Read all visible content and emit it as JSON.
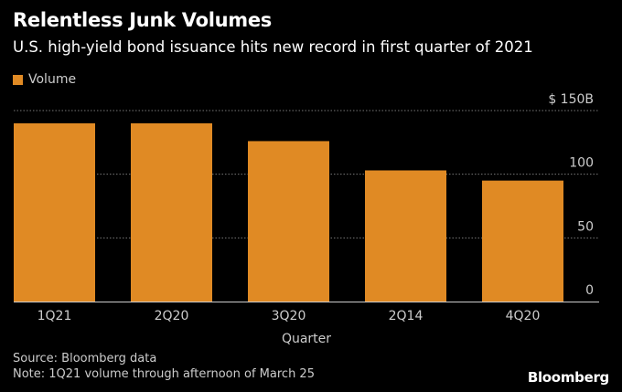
{
  "chart_data": {
    "type": "bar",
    "title": "Relentless Junk Volumes",
    "subtitle": "U.S. high-yield bond issuance hits new record in first quarter of 2021",
    "legend": [
      "Volume"
    ],
    "legend_placement": "top-left",
    "categories": [
      "1Q21",
      "2Q20",
      "3Q20",
      "2Q14",
      "4Q20"
    ],
    "series": [
      {
        "name": "Volume",
        "values": [
          140,
          140,
          126,
          103,
          95
        ]
      }
    ],
    "xlabel": "Quarter",
    "ylabel": "",
    "ylim": [
      0,
      150
    ],
    "yticks": [
      0,
      50,
      100,
      150
    ],
    "ytick_labels": [
      "0",
      "50",
      "100",
      "$ 150B"
    ],
    "grid": true,
    "colors": {
      "bar": "#e08a24",
      "grid": "#777777",
      "axis": "#cccccc"
    }
  },
  "footer": {
    "source": "Source: Bloomberg data",
    "note": "Note: 1Q21 volume through afternoon of March 25",
    "brand": "Bloomberg"
  }
}
